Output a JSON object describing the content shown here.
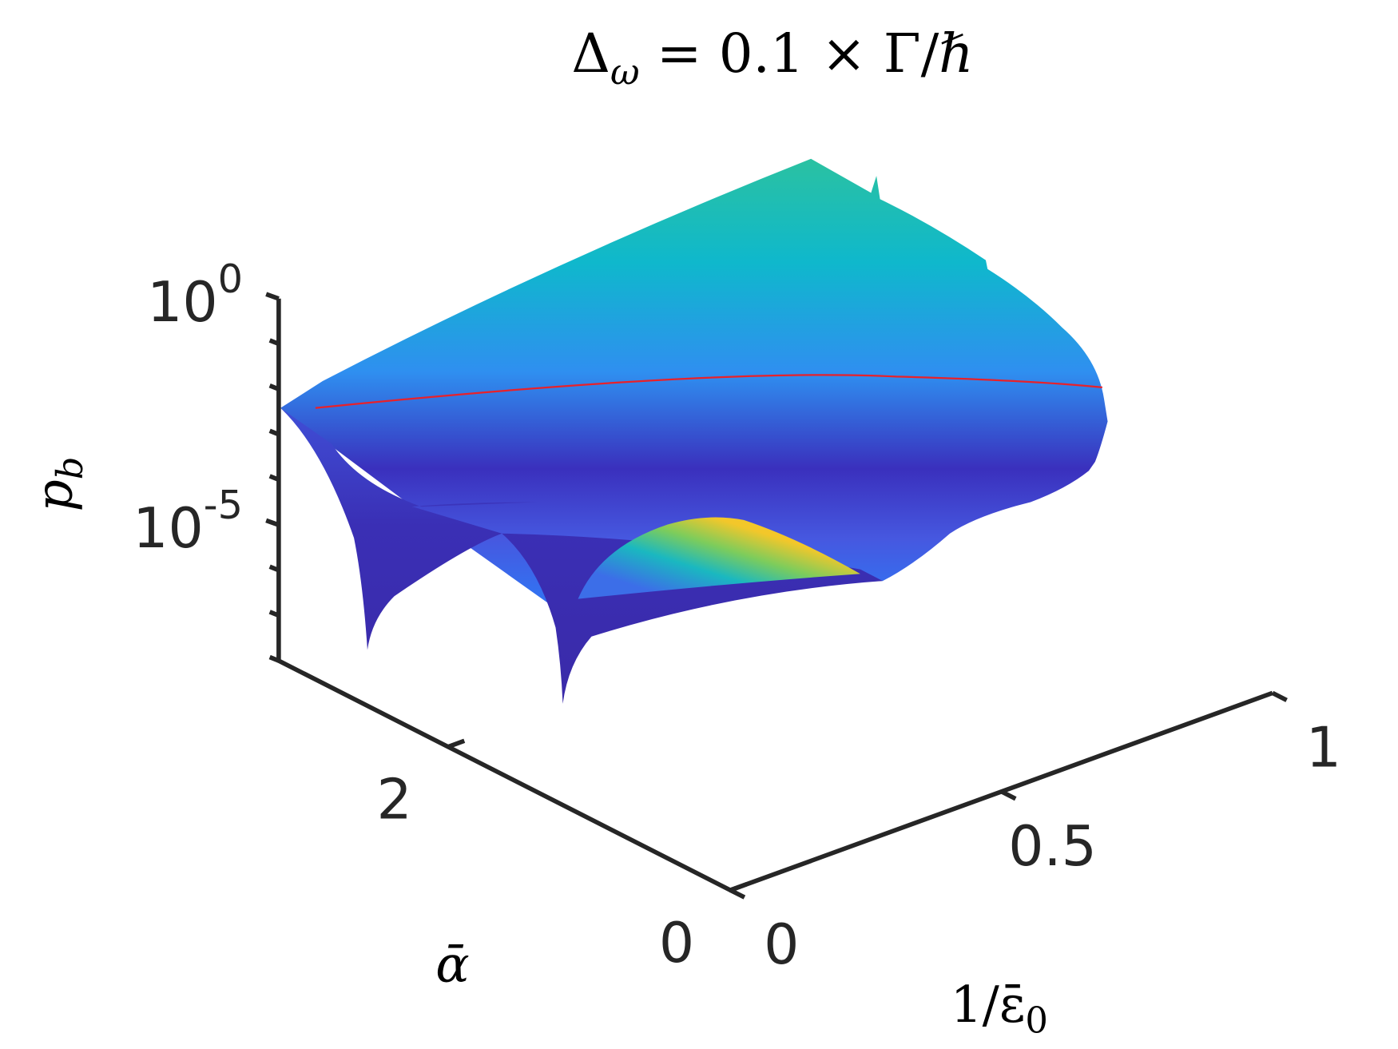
{
  "chart_data": {
    "type": "surface3d",
    "title": {
      "base": "Δ",
      "sub": "ω",
      "rest": " = 0.1 × Γ/ℏ"
    },
    "xlabel": {
      "base": "1/ε̄",
      "sub": "0"
    },
    "ylabel": "ᾱ",
    "zlabel": {
      "base": "p",
      "sub": "b"
    },
    "xlim": [
      0,
      1
    ],
    "xticks": [
      0,
      0.5,
      1
    ],
    "ylim": [
      0,
      3.2
    ],
    "yticks": [
      0,
      2
    ],
    "zlim": [
      1e-08,
      1
    ],
    "zscale": "log",
    "zticks": [
      {
        "value": 1,
        "label": "10",
        "sup": "0"
      },
      {
        "value": 1e-05,
        "label": "10",
        "sup": "-5"
      }
    ],
    "zminorticks": [
      0.1,
      0.01,
      0.001,
      0.0001,
      1e-06,
      1e-07,
      1e-08
    ]
  }
}
